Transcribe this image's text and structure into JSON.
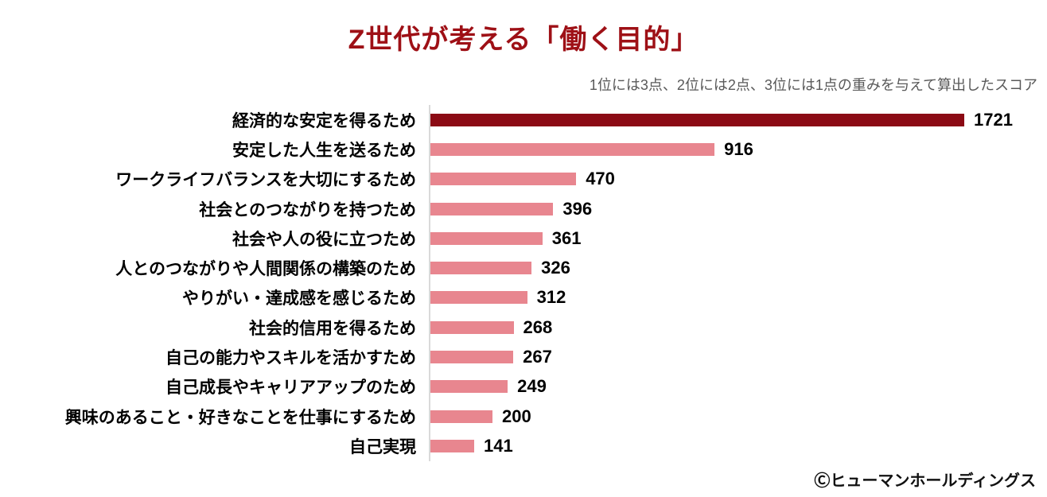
{
  "title": "Z世代が考える「働く目的」",
  "subtitle": "1位には3点、2位には2点、3位には1点の重みを与えて算出したスコア",
  "footer": "Ⓒヒューマンホールディングス",
  "colors": {
    "title_text": "#9E1016",
    "subtitle_text": "#595959",
    "axis_line": "#D9D9D9",
    "bar_highlight": "#8B0A14",
    "bar_default": "#E8868F",
    "value_text": "#000000"
  },
  "chart_data": {
    "type": "bar",
    "orientation": "horizontal",
    "title": "Z世代が考える「働く目的」",
    "subtitle": "1位には3点、2位には2点、3位には1点の重みを与えて算出したスコア",
    "categories": [
      "経済的な安定を得るため",
      "安定した人生を送るため",
      "ワークライフバランスを大切にするため",
      "社会とのつながりを持つため",
      "社会や人の役に立つため",
      "人とのつながりや人間関係の構築のため",
      "やりがい・達成感を感じるため",
      "社会的信用を得るため",
      "自己の能力やスキルを活かすため",
      "自己成長やキャリアアップのため",
      "興味のあること・好きなことを仕事にするため",
      "自己実現"
    ],
    "values": [
      1721,
      916,
      470,
      396,
      361,
      326,
      312,
      268,
      267,
      249,
      200,
      141
    ],
    "highlight_index": 0,
    "bar_color_highlight": "#8B0A14",
    "bar_color_default": "#E8868F",
    "xlabel": "",
    "ylabel": "",
    "xlim": [
      0,
      1721
    ],
    "grid": false,
    "legend": false,
    "data_labels": true
  }
}
